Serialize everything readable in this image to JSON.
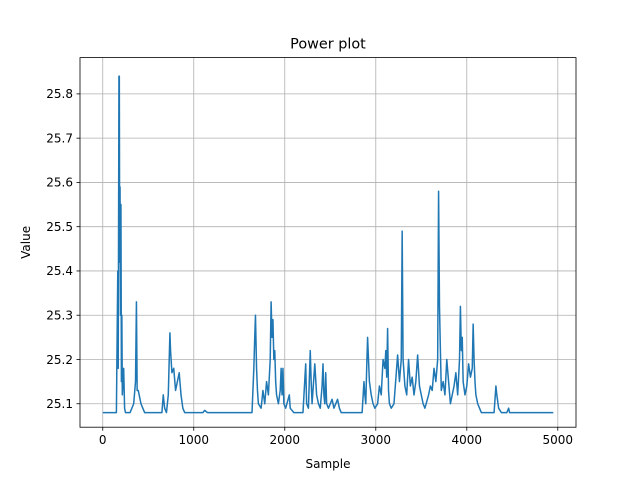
{
  "chart_data": {
    "type": "line",
    "title": "Power plot",
    "xlabel": "Sample",
    "ylabel": "Value",
    "xlim": [
      -250,
      5200
    ],
    "ylim": [
      25.047,
      25.882
    ],
    "xticks": [
      0,
      1000,
      2000,
      3000,
      4000,
      5000
    ],
    "xtick_labels": [
      "0",
      "1000",
      "2000",
      "3000",
      "4000",
      "5000"
    ],
    "yticks": [
      25.1,
      25.2,
      25.3,
      25.4,
      25.5,
      25.6,
      25.7,
      25.8
    ],
    "ytick_labels": [
      "25.1",
      "25.2",
      "25.3",
      "25.4",
      "25.5",
      "25.6",
      "25.7",
      "25.8"
    ],
    "grid": true,
    "line_color": "#1f77b4",
    "series": [
      {
        "baseline": 25.08,
        "x_range": [
          0,
          4950
        ],
        "points": [
          [
            0,
            25.08
          ],
          [
            150,
            25.08
          ],
          [
            165,
            25.4
          ],
          [
            170,
            25.18
          ],
          [
            178,
            25.84
          ],
          [
            182,
            25.84
          ],
          [
            186,
            25.42
          ],
          [
            190,
            25.59
          ],
          [
            195,
            25.3
          ],
          [
            200,
            25.55
          ],
          [
            205,
            25.15
          ],
          [
            210,
            25.3
          ],
          [
            215,
            25.12
          ],
          [
            230,
            25.18
          ],
          [
            240,
            25.09
          ],
          [
            250,
            25.08
          ],
          [
            300,
            25.08
          ],
          [
            340,
            25.1
          ],
          [
            360,
            25.15
          ],
          [
            370,
            25.33
          ],
          [
            378,
            25.13
          ],
          [
            390,
            25.13
          ],
          [
            400,
            25.12
          ],
          [
            420,
            25.1
          ],
          [
            440,
            25.09
          ],
          [
            460,
            25.08
          ],
          [
            650,
            25.08
          ],
          [
            665,
            25.12
          ],
          [
            680,
            25.09
          ],
          [
            700,
            25.08
          ],
          [
            720,
            25.12
          ],
          [
            738,
            25.26
          ],
          [
            745,
            25.22
          ],
          [
            760,
            25.17
          ],
          [
            780,
            25.18
          ],
          [
            800,
            25.13
          ],
          [
            820,
            25.15
          ],
          [
            840,
            25.17
          ],
          [
            860,
            25.12
          ],
          [
            880,
            25.09
          ],
          [
            900,
            25.08
          ],
          [
            1100,
            25.08
          ],
          [
            1120,
            25.085
          ],
          [
            1150,
            25.08
          ],
          [
            1640,
            25.08
          ],
          [
            1660,
            25.18
          ],
          [
            1670,
            25.25
          ],
          [
            1678,
            25.3
          ],
          [
            1690,
            25.18
          ],
          [
            1700,
            25.13
          ],
          [
            1710,
            25.1
          ],
          [
            1740,
            25.09
          ],
          [
            1760,
            25.13
          ],
          [
            1780,
            25.1
          ],
          [
            1800,
            25.15
          ],
          [
            1820,
            25.12
          ],
          [
            1840,
            25.2
          ],
          [
            1850,
            25.33
          ],
          [
            1860,
            25.25
          ],
          [
            1870,
            25.29
          ],
          [
            1880,
            25.2
          ],
          [
            1890,
            25.22
          ],
          [
            1900,
            25.15
          ],
          [
            1910,
            25.12
          ],
          [
            1930,
            25.1
          ],
          [
            1950,
            25.13
          ],
          [
            1960,
            25.18
          ],
          [
            1970,
            25.12
          ],
          [
            1980,
            25.18
          ],
          [
            1990,
            25.1
          ],
          [
            2010,
            25.09
          ],
          [
            2050,
            25.12
          ],
          [
            2060,
            25.09
          ],
          [
            2100,
            25.08
          ],
          [
            2200,
            25.08
          ],
          [
            2230,
            25.19
          ],
          [
            2240,
            25.1
          ],
          [
            2260,
            25.09
          ],
          [
            2280,
            25.22
          ],
          [
            2290,
            25.15
          ],
          [
            2300,
            25.1
          ],
          [
            2330,
            25.19
          ],
          [
            2350,
            25.12
          ],
          [
            2370,
            25.1
          ],
          [
            2390,
            25.09
          ],
          [
            2410,
            25.14
          ],
          [
            2420,
            25.19
          ],
          [
            2430,
            25.12
          ],
          [
            2440,
            25.1
          ],
          [
            2450,
            25.17
          ],
          [
            2460,
            25.1
          ],
          [
            2480,
            25.09
          ],
          [
            2500,
            25.1
          ],
          [
            2520,
            25.11
          ],
          [
            2540,
            25.09
          ],
          [
            2580,
            25.11
          ],
          [
            2600,
            25.09
          ],
          [
            2620,
            25.08
          ],
          [
            2850,
            25.08
          ],
          [
            2870,
            25.15
          ],
          [
            2880,
            25.12
          ],
          [
            2890,
            25.1
          ],
          [
            2900,
            25.18
          ],
          [
            2910,
            25.25
          ],
          [
            2920,
            25.2
          ],
          [
            2930,
            25.15
          ],
          [
            2950,
            25.12
          ],
          [
            2970,
            25.1
          ],
          [
            2990,
            25.09
          ],
          [
            3020,
            25.1
          ],
          [
            3040,
            25.14
          ],
          [
            3060,
            25.12
          ],
          [
            3080,
            25.2
          ],
          [
            3100,
            25.18
          ],
          [
            3110,
            25.22
          ],
          [
            3120,
            25.16
          ],
          [
            3130,
            25.27
          ],
          [
            3140,
            25.13
          ],
          [
            3150,
            25.1
          ],
          [
            3170,
            25.09
          ],
          [
            3200,
            25.1
          ],
          [
            3240,
            25.21
          ],
          [
            3260,
            25.15
          ],
          [
            3280,
            25.2
          ],
          [
            3290,
            25.49
          ],
          [
            3300,
            25.2
          ],
          [
            3320,
            25.14
          ],
          [
            3340,
            25.12
          ],
          [
            3360,
            25.2
          ],
          [
            3380,
            25.14
          ],
          [
            3400,
            25.16
          ],
          [
            3420,
            25.12
          ],
          [
            3440,
            25.15
          ],
          [
            3460,
            25.21
          ],
          [
            3480,
            25.14
          ],
          [
            3500,
            25.12
          ],
          [
            3520,
            25.1
          ],
          [
            3540,
            25.09
          ],
          [
            3580,
            25.12
          ],
          [
            3600,
            25.14
          ],
          [
            3620,
            25.13
          ],
          [
            3640,
            25.18
          ],
          [
            3660,
            25.15
          ],
          [
            3680,
            25.2
          ],
          [
            3690,
            25.58
          ],
          [
            3700,
            25.32
          ],
          [
            3710,
            25.22
          ],
          [
            3720,
            25.13
          ],
          [
            3740,
            25.15
          ],
          [
            3760,
            25.12
          ],
          [
            3780,
            25.2
          ],
          [
            3800,
            25.15
          ],
          [
            3820,
            25.1
          ],
          [
            3840,
            25.12
          ],
          [
            3860,
            25.14
          ],
          [
            3880,
            25.17
          ],
          [
            3900,
            25.12
          ],
          [
            3920,
            25.2
          ],
          [
            3930,
            25.32
          ],
          [
            3940,
            25.22
          ],
          [
            3950,
            25.25
          ],
          [
            3960,
            25.15
          ],
          [
            3980,
            25.12
          ],
          [
            4000,
            25.14
          ],
          [
            4020,
            25.19
          ],
          [
            4040,
            25.16
          ],
          [
            4060,
            25.18
          ],
          [
            4070,
            25.28
          ],
          [
            4080,
            25.2
          ],
          [
            4090,
            25.15
          ],
          [
            4100,
            25.12
          ],
          [
            4120,
            25.1
          ],
          [
            4140,
            25.09
          ],
          [
            4160,
            25.08
          ],
          [
            4300,
            25.08
          ],
          [
            4320,
            25.14
          ],
          [
            4330,
            25.12
          ],
          [
            4350,
            25.09
          ],
          [
            4380,
            25.08
          ],
          [
            4440,
            25.08
          ],
          [
            4460,
            25.09
          ],
          [
            4470,
            25.08
          ],
          [
            4600,
            25.08
          ],
          [
            4950,
            25.08
          ]
        ]
      }
    ]
  }
}
